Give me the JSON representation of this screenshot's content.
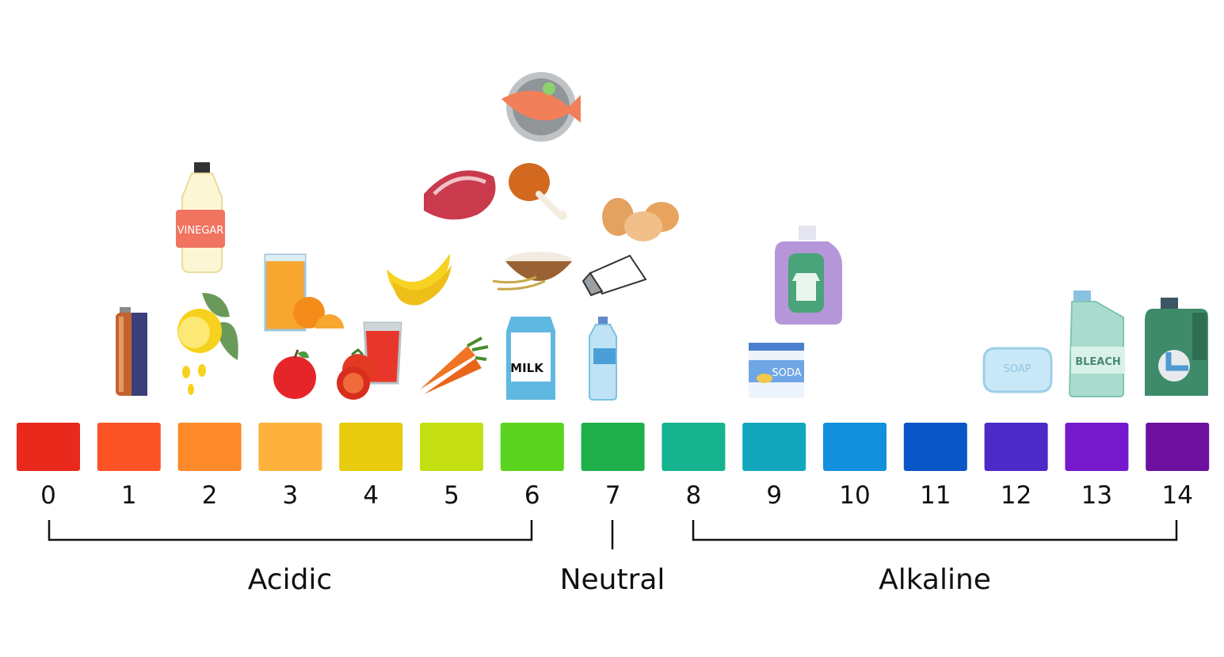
{
  "scale": {
    "values": [
      "0",
      "1",
      "2",
      "3",
      "4",
      "5",
      "6",
      "7",
      "8",
      "9",
      "10",
      "11",
      "12",
      "13",
      "14"
    ],
    "colors": [
      "#e8291c",
      "#fb5325",
      "#fc8a2a",
      "#fcb23c",
      "#e6cc0d",
      "#c3df12",
      "#5ad41e",
      "#1fb04c",
      "#16b38f",
      "#12a7bc",
      "#128fdd",
      "#0a56c6",
      "#4b2ac7",
      "#7419cc",
      "#6d109f"
    ]
  },
  "groups": {
    "acidic": "Acidic",
    "neutral": "Neutral",
    "alkaline": "Alkaline"
  },
  "labels": {
    "vinegar": "VINEGAR",
    "milk": "MILK",
    "soda": "SODA",
    "soap": "SOAP",
    "bleach": "BLEACH"
  },
  "items": [
    {
      "name": "battery",
      "ph": 1
    },
    {
      "name": "vinegar",
      "ph": 2
    },
    {
      "name": "lemon",
      "ph": 2
    },
    {
      "name": "orange juice",
      "ph": 3
    },
    {
      "name": "apple",
      "ph": 3
    },
    {
      "name": "tomato juice",
      "ph": 4
    },
    {
      "name": "tomatoes",
      "ph": 4
    },
    {
      "name": "bananas",
      "ph": 5
    },
    {
      "name": "carrots",
      "ph": 5
    },
    {
      "name": "steak",
      "ph": 5
    },
    {
      "name": "chicken leg",
      "ph": 6
    },
    {
      "name": "rice",
      "ph": 6
    },
    {
      "name": "milk",
      "ph": 6
    },
    {
      "name": "fish",
      "ph": 6
    },
    {
      "name": "eggs",
      "ph": 7
    },
    {
      "name": "salt",
      "ph": 7
    },
    {
      "name": "water",
      "ph": 7
    },
    {
      "name": "baking soda",
      "ph": 9
    },
    {
      "name": "detergent",
      "ph": 10
    },
    {
      "name": "soap",
      "ph": 12
    },
    {
      "name": "bleach",
      "ph": 13
    },
    {
      "name": "drain cleaner",
      "ph": 14
    }
  ]
}
